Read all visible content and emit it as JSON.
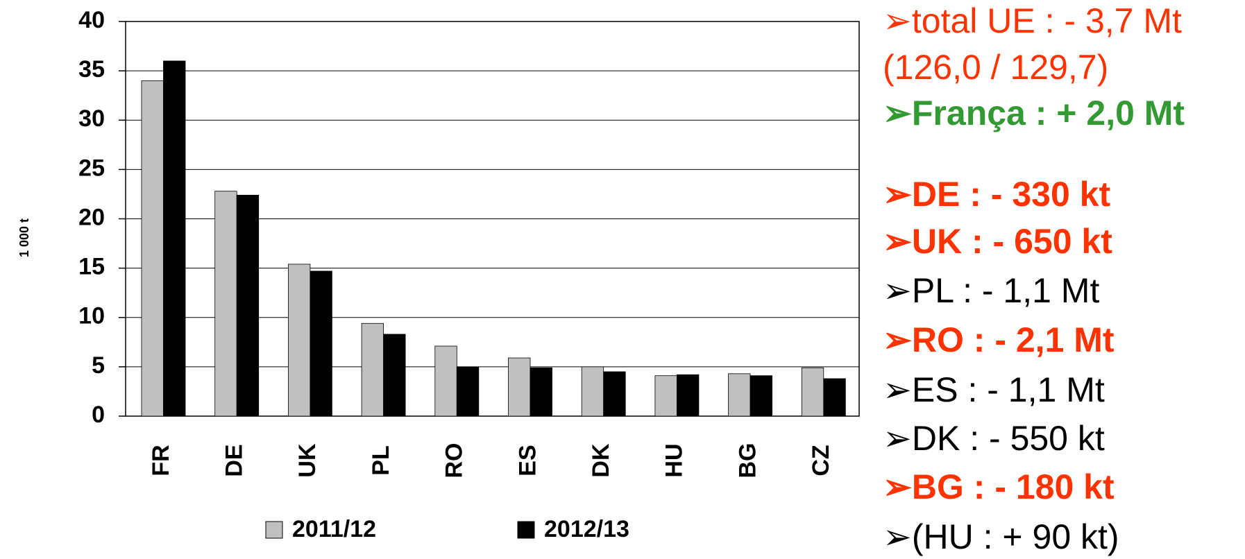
{
  "chart_data": {
    "type": "bar",
    "y_label": "1 000 t",
    "categories": [
      "FR",
      "DE",
      "UK",
      "PL",
      "RO",
      "ES",
      "DK",
      "HU",
      "BG",
      "CZ"
    ],
    "series": [
      {
        "name": "2011/12",
        "color": "#c0c0c0",
        "values": [
          34,
          22.8,
          15.4,
          9.4,
          7.1,
          5.9,
          5.0,
          4.1,
          4.3,
          4.9
        ]
      },
      {
        "name": "2012/13",
        "color": "#000000",
        "values": [
          36,
          22.4,
          14.7,
          8.3,
          5.0,
          4.9,
          4.5,
          4.2,
          4.1,
          3.8
        ]
      }
    ],
    "ylim": [
      0,
      40
    ],
    "yticks": [
      0,
      5,
      10,
      15,
      20,
      25,
      30,
      35,
      40
    ],
    "grid": true,
    "annotations": [
      {
        "text": "➢total UE : - 3,7 Mt",
        "color": "#ff3300",
        "bold": false
      },
      {
        "text": "(126,0 / 129,7)",
        "color": "#ff3300",
        "bold": false
      },
      {
        "text": "➢França : + 2,0 Mt",
        "color": "#339933",
        "bold": true
      },
      {
        "text": "➢DE : - 330 kt",
        "color": "#ff3300",
        "bold": true
      },
      {
        "text": "➢UK : - 650 kt",
        "color": "#ff3300",
        "bold": true
      },
      {
        "text": "➢PL : - 1,1 Mt",
        "color": "#000000",
        "bold": false
      },
      {
        "text": "➢RO : - 2,1 Mt",
        "color": "#ff3300",
        "bold": true
      },
      {
        "text": "➢ES : - 1,1 Mt",
        "color": "#000000",
        "bold": false
      },
      {
        "text": "➢DK : - 550 kt",
        "color": "#000000",
        "bold": false
      },
      {
        "text": "➢BG : - 180 kt",
        "color": "#ff3300",
        "bold": true
      },
      {
        "text": "➢(HU : + 90 kt)",
        "color": "#000000",
        "bold": false
      }
    ]
  }
}
